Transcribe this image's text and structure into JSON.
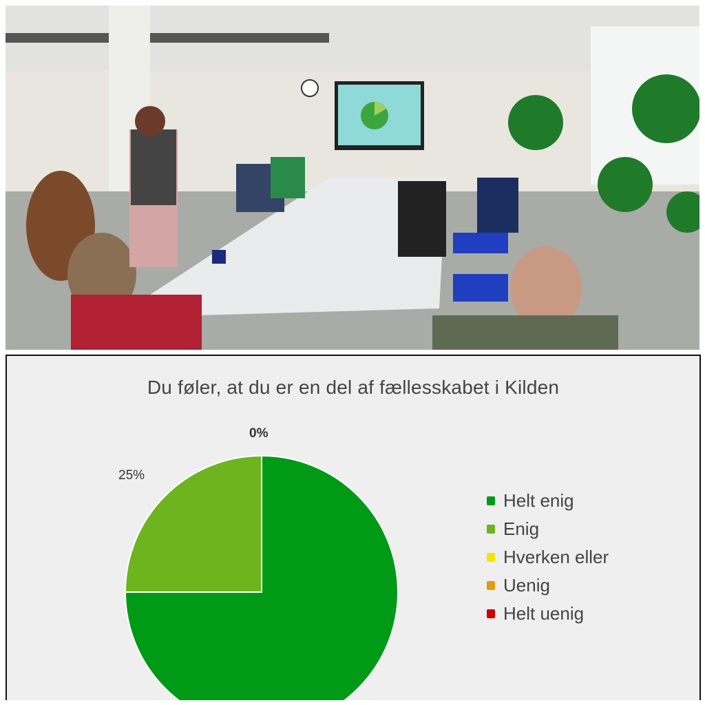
{
  "photo": {
    "description_free": true,
    "screen_colors": [
      "#3da53d",
      "#9fd15a"
    ]
  },
  "chart_data": {
    "type": "pie",
    "title": "Du føler, at du er en del af fællesskabet i Kilden",
    "categories": [
      "Helt enig",
      "Enig",
      "Hverken eller",
      "Uenig",
      "Helt uenig"
    ],
    "values": [
      75,
      25,
      0,
      0,
      0
    ],
    "colors": [
      "#009a17",
      "#6db41e",
      "#f2e500",
      "#e49a12",
      "#cc0000"
    ],
    "data_labels": [
      {
        "category": "Enig",
        "text": "25%"
      },
      {
        "category": "Hverken eller",
        "text": "0%"
      }
    ],
    "legend_position": "right"
  }
}
